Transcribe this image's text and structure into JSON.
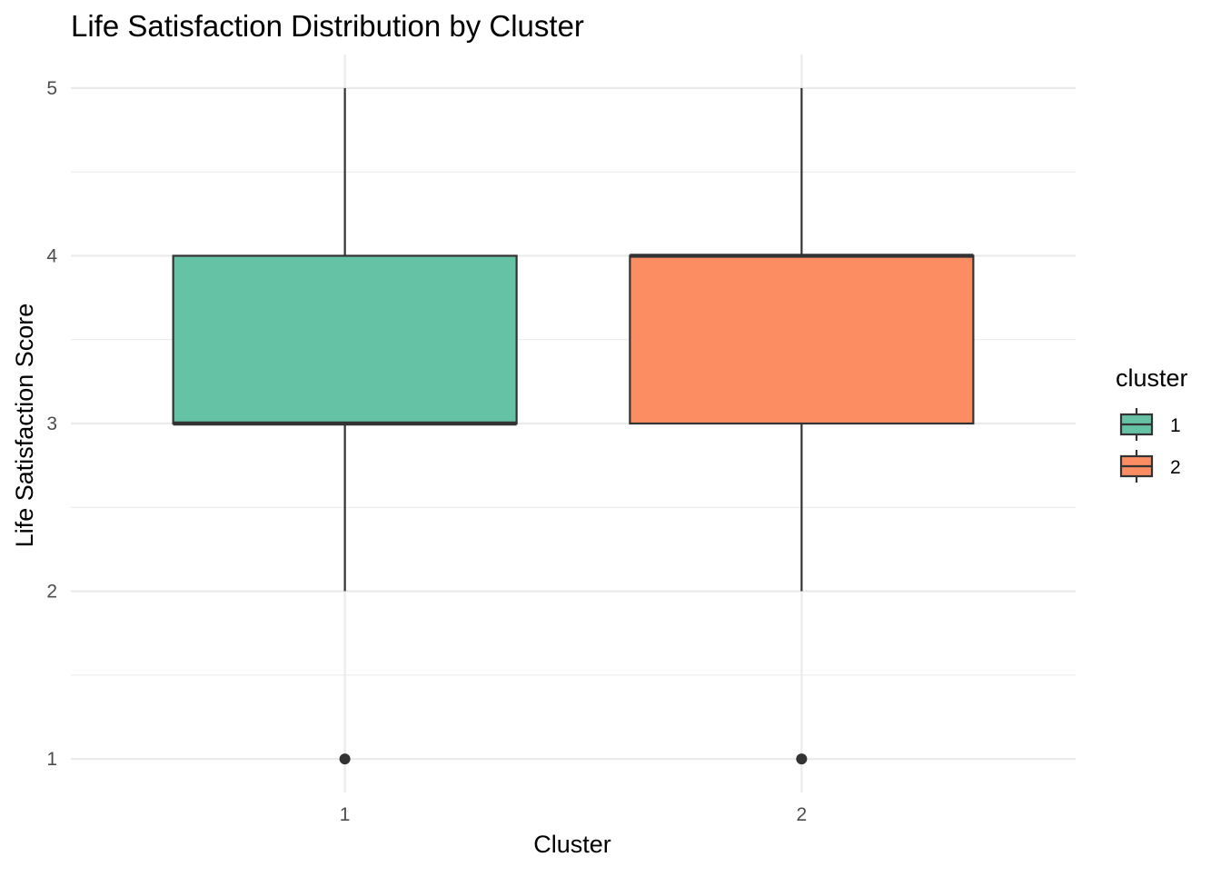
{
  "chart_data": {
    "type": "boxplot",
    "title": "Life Satisfaction Distribution by Cluster",
    "xlabel": "Cluster",
    "ylabel": "Life Satisfaction Score",
    "categories": [
      "1",
      "2"
    ],
    "y_ticks": [
      "1",
      "2",
      "3",
      "4",
      "5"
    ],
    "ylim": [
      0.8,
      5.2
    ],
    "grid": true,
    "legend": {
      "title": "cluster",
      "placement": "right",
      "entries": [
        "1",
        "2"
      ]
    },
    "colors": [
      "#66c2a5",
      "#fc8d62"
    ],
    "outline_color": "#333333",
    "series": [
      {
        "name": "1",
        "whisker_low": 2,
        "q1": 3,
        "median": 3,
        "q3": 4,
        "whisker_high": 5,
        "outliers": [
          1
        ]
      },
      {
        "name": "2",
        "whisker_low": 2,
        "q1": 3,
        "median": 4,
        "q3": 4,
        "whisker_high": 5,
        "outliers": [
          1
        ]
      }
    ]
  }
}
